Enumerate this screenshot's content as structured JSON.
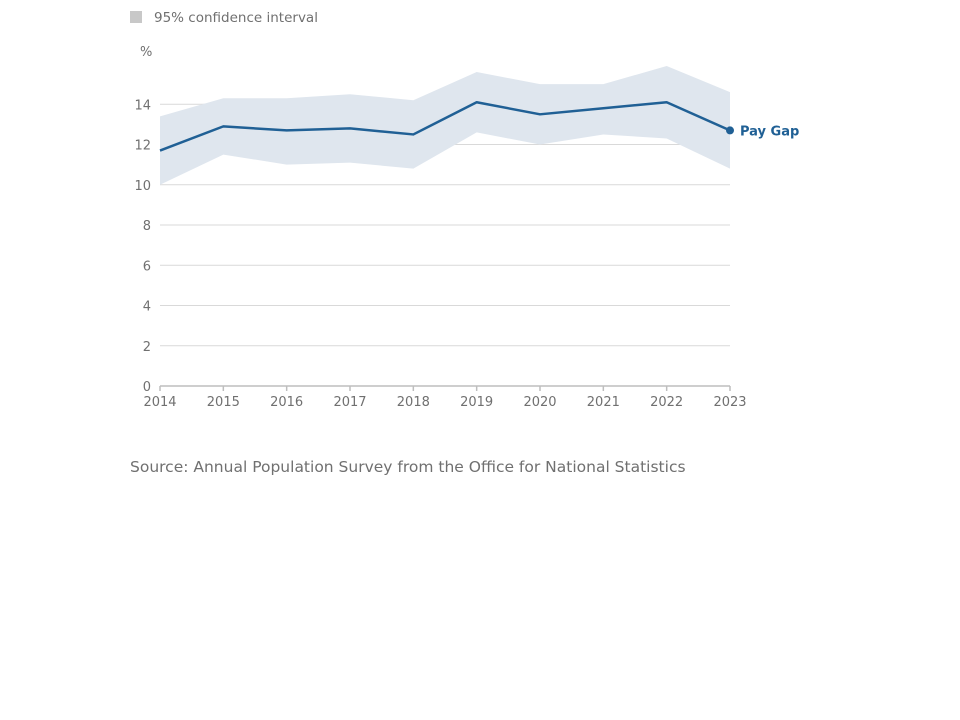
{
  "legend": {
    "band_label": "95% confidence interval"
  },
  "source": "Source: Annual Population Survey from the Office for National Statistics",
  "colors": {
    "line": "#206095",
    "band": "#dfe6ee",
    "legend_swatch": "#c8c8c8",
    "grid": "#d9d9d9",
    "axis": "#bebebe",
    "text": "#707070"
  },
  "chart_data": {
    "type": "line",
    "y_unit_label": "%",
    "x": [
      "2014",
      "2015",
      "2016",
      "2017",
      "2018",
      "2019",
      "2020",
      "2021",
      "2022",
      "2023"
    ],
    "ylim": [
      0,
      16
    ],
    "yticks": [
      0,
      2,
      4,
      6,
      8,
      10,
      12,
      14
    ],
    "grid": true,
    "series": [
      {
        "name": "Pay Gap",
        "values": [
          11.7,
          12.9,
          12.7,
          12.8,
          12.5,
          14.1,
          13.5,
          13.8,
          14.1,
          12.7
        ]
      }
    ],
    "confidence_interval": {
      "label": "95% confidence interval",
      "lower": [
        10.0,
        11.5,
        11.0,
        11.1,
        10.8,
        12.6,
        12.0,
        12.5,
        12.3,
        10.8
      ],
      "upper": [
        13.4,
        14.3,
        14.3,
        14.5,
        14.2,
        15.6,
        15.0,
        15.0,
        15.9,
        14.6
      ]
    }
  }
}
